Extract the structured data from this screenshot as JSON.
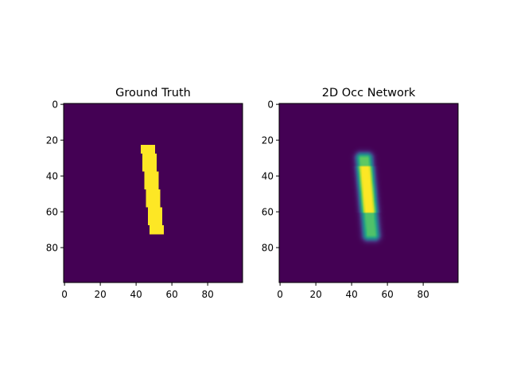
{
  "chart_data": [
    {
      "type": "heatmap",
      "title": "Ground Truth",
      "xlim": [
        0,
        99
      ],
      "ylim": [
        99,
        0
      ],
      "xticks": [
        "0",
        "20",
        "40",
        "60",
        "80"
      ],
      "yticks": [
        "0",
        "20",
        "40",
        "60",
        "80"
      ],
      "colormap": "viridis",
      "grid": false,
      "shape": "binary stroke of digit '1', value 1 inside, 0 elsewhere",
      "stroke_rows": [
        23,
        72
      ],
      "stroke_center_x_top": 46.5,
      "stroke_center_x_bottom": 51.5,
      "stroke_width": 8
    },
    {
      "type": "heatmap",
      "title": "2D Occ Network",
      "xlim": [
        0,
        99
      ],
      "ylim": [
        99,
        0
      ],
      "xticks": [
        "0",
        "20",
        "40",
        "60",
        "80"
      ],
      "yticks": [
        "0",
        "20",
        "40",
        "60",
        "80"
      ],
      "colormap": "viridis",
      "grid": false,
      "shape": "blurred prediction of the stroke, peak near (48, 50), values 0 to 1",
      "stroke_rows": [
        30,
        73
      ],
      "stroke_center_x_top": 47,
      "stroke_center_x_bottom": 51,
      "stroke_width": 10
    }
  ],
  "colors": {
    "background": "#440154",
    "peak": "#fde725",
    "mid": "#21918c",
    "low_green": "#5ec962"
  }
}
